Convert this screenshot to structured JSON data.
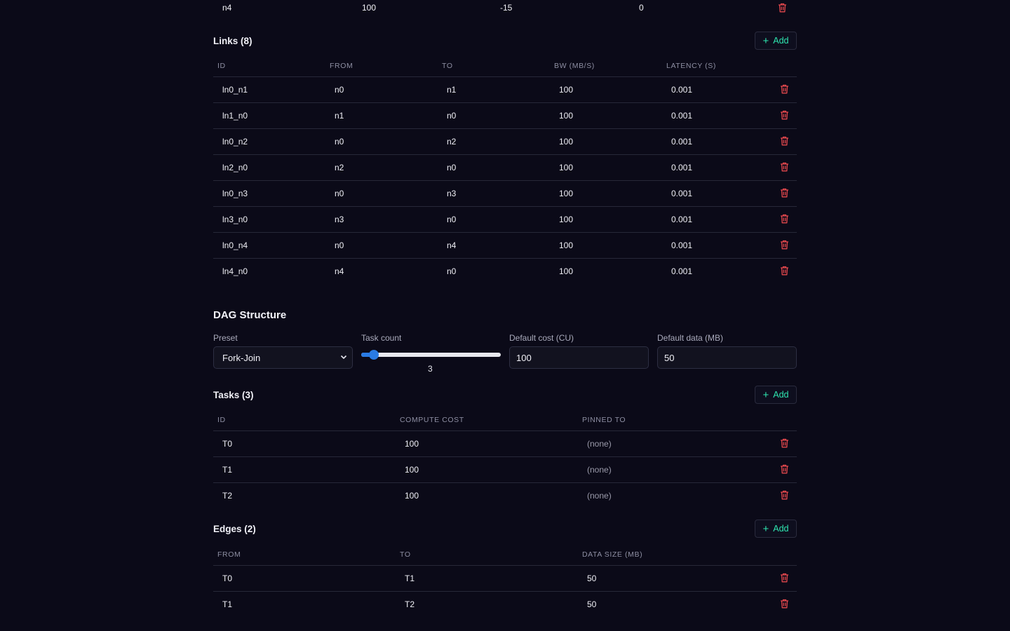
{
  "nodes_tail": {
    "id": "n4",
    "capacity": "100",
    "x": "-15",
    "y": "0"
  },
  "links": {
    "title": "Links (8)",
    "add_label": "Add",
    "columns": [
      "ID",
      "FROM",
      "TO",
      "BW (MB/S)",
      "LATENCY (S)"
    ],
    "rows": [
      {
        "id": "ln0_n1",
        "from": "n0",
        "to": "n1",
        "bw": "100",
        "latency": "0.001"
      },
      {
        "id": "ln1_n0",
        "from": "n1",
        "to": "n0",
        "bw": "100",
        "latency": "0.001"
      },
      {
        "id": "ln0_n2",
        "from": "n0",
        "to": "n2",
        "bw": "100",
        "latency": "0.001"
      },
      {
        "id": "ln2_n0",
        "from": "n2",
        "to": "n0",
        "bw": "100",
        "latency": "0.001"
      },
      {
        "id": "ln0_n3",
        "from": "n0",
        "to": "n3",
        "bw": "100",
        "latency": "0.001"
      },
      {
        "id": "ln3_n0",
        "from": "n3",
        "to": "n0",
        "bw": "100",
        "latency": "0.001"
      },
      {
        "id": "ln0_n4",
        "from": "n0",
        "to": "n4",
        "bw": "100",
        "latency": "0.001"
      },
      {
        "id": "ln4_n0",
        "from": "n4",
        "to": "n0",
        "bw": "100",
        "latency": "0.001"
      }
    ]
  },
  "dag": {
    "title": "DAG Structure",
    "preset_label": "Preset",
    "preset_value": "Fork-Join",
    "task_count_label": "Task count",
    "task_count_value": "3",
    "task_count_fraction": 0.04,
    "default_cost_label": "Default cost (CU)",
    "default_cost_value": "100",
    "default_data_label": "Default data (MB)",
    "default_data_value": "50"
  },
  "tasks": {
    "title": "Tasks (3)",
    "add_label": "Add",
    "columns": [
      "ID",
      "COMPUTE COST",
      "PINNED TO"
    ],
    "rows": [
      {
        "id": "T0",
        "cost": "100",
        "pinned": "(none)"
      },
      {
        "id": "T1",
        "cost": "100",
        "pinned": "(none)"
      },
      {
        "id": "T2",
        "cost": "100",
        "pinned": "(none)"
      }
    ]
  },
  "edges": {
    "title": "Edges (2)",
    "add_label": "Add",
    "columns": [
      "FROM",
      "TO",
      "DATA SIZE (MB)"
    ],
    "rows": [
      {
        "from": "T0",
        "to": "T1",
        "size": "50"
      },
      {
        "from": "T1",
        "to": "T2",
        "size": "50"
      }
    ]
  },
  "colors": {
    "accent": "#2ee6b0",
    "danger": "#e5484d",
    "slider": "#2a7be4",
    "background": "#0b0a18"
  },
  "icons": {
    "delete": "trash-icon",
    "add": "plus-icon"
  }
}
